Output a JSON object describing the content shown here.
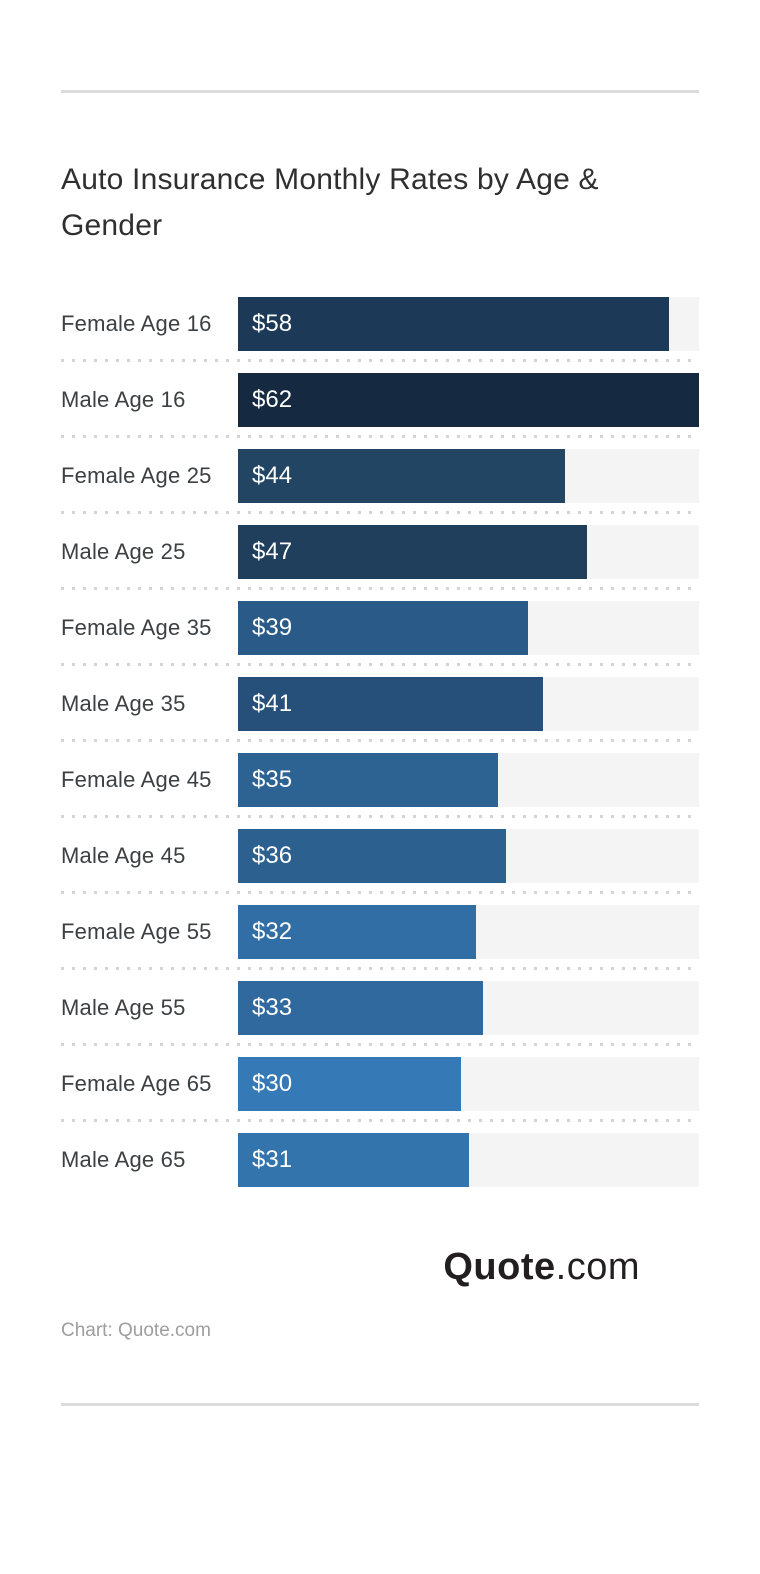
{
  "header": {
    "title": "Auto Insurance Monthly Rates by Age & Gender"
  },
  "chart_data": {
    "type": "bar",
    "orientation": "horizontal",
    "title": "Auto Insurance Monthly Rates by Age & Gender",
    "categories": [
      "Female Age 16",
      "Male Age 16",
      "Female Age 25",
      "Male Age 25",
      "Female Age 35",
      "Male Age 35",
      "Female Age 45",
      "Male Age 45",
      "Female Age 55",
      "Male Age 55",
      "Female Age 65",
      "Male Age 65"
    ],
    "values": [
      58,
      62,
      44,
      47,
      39,
      41,
      35,
      36,
      32,
      33,
      30,
      31
    ],
    "value_labels": [
      "$58",
      "$62",
      "$44",
      "$47",
      "$39",
      "$41",
      "$35",
      "$36",
      "$32",
      "$33",
      "$30",
      "$31"
    ],
    "bar_colors": [
      "#1c3a57",
      "#152a40",
      "#224564",
      "#1f3f5d",
      "#2a5a87",
      "#26507a",
      "#2d6393",
      "#2c608f",
      "#306ea5",
      "#2f699d",
      "#3579b6",
      "#3374ad"
    ],
    "value_prefix": "$",
    "xlim": [
      0,
      62
    ],
    "track_color": "#f4f4f4",
    "grid": false,
    "legend": false,
    "value_label_position": "inside-left"
  },
  "footer": {
    "logo": {
      "primary": "Quote",
      "secondary": ".com"
    },
    "attribution": "Chart: Quote.com"
  },
  "colors": {
    "accent_darkest": "#152a40",
    "accent_lightest": "#3579b6",
    "divider": "#dcdcdc",
    "separator_dots": "#d4d4d4",
    "track": "#f4f4f4",
    "title_text": "#2f2f2f",
    "label_text": "#3c4043",
    "value_text": "#ffffff",
    "attribution_text": "#9e9e9e",
    "logo_text": "#231f20"
  }
}
